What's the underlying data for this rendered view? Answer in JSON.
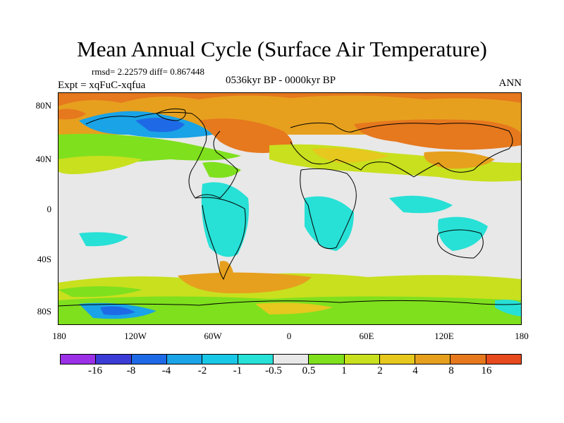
{
  "title": "Mean Annual Cycle (Surface Air Temperature)",
  "stats": "rmsd= 2.22579 diff= 0.867448",
  "experiment": "Expt = xqFuC-xqfua",
  "period": "0536kyr BP - 0000kyr BP",
  "season": "ANN",
  "lat_labels": [
    "80N",
    "40N",
    "0",
    "40S",
    "80S"
  ],
  "lon_labels": [
    "180",
    "120W",
    "60W",
    "0",
    "60E",
    "120E",
    "180"
  ],
  "colorbar": {
    "colors": [
      "#9b30e6",
      "#3b3bd6",
      "#1e6ae6",
      "#1aa3e6",
      "#19c7e6",
      "#27e0d6",
      "#e8e8e8",
      "#7fe01e",
      "#c8e01e",
      "#e6c81e",
      "#e6a01e",
      "#e6781e",
      "#e64a1e"
    ],
    "labels": [
      "-16",
      "-8",
      "-4",
      "-2",
      "-1",
      "-0.5",
      "0.5",
      "1",
      "2",
      "4",
      "8",
      "16"
    ]
  }
}
